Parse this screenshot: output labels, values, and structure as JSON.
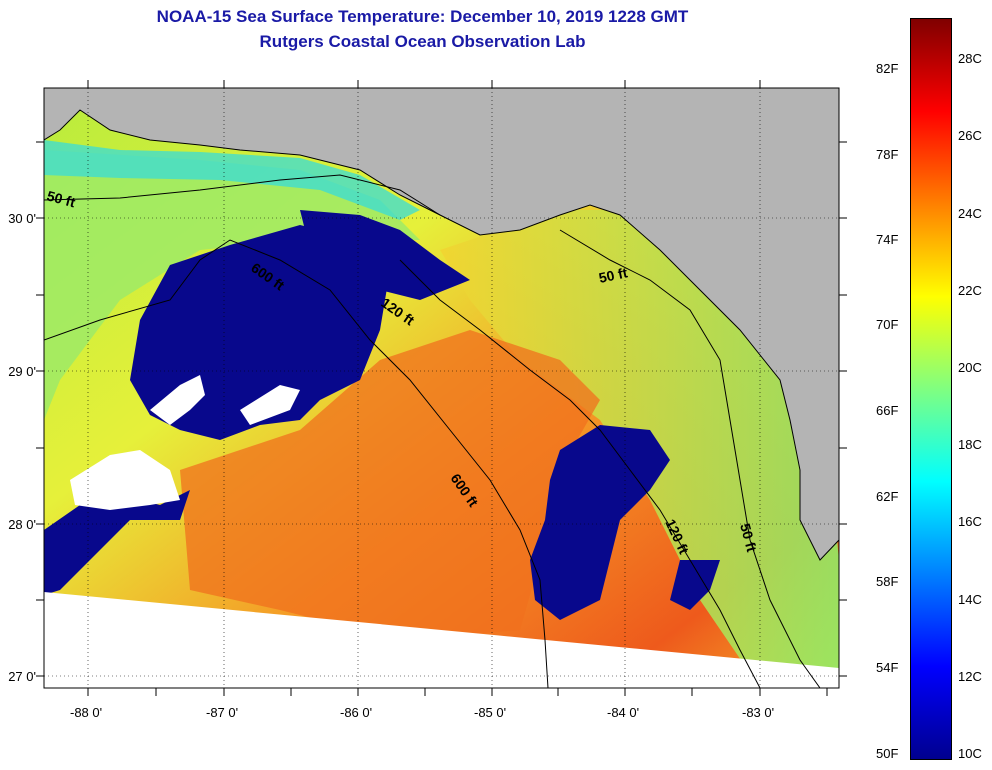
{
  "header": {
    "title": "NOAA-15 Sea Surface Temperature:  December 10, 2019 1228 GMT",
    "subtitle": "Rutgers Coastal Ocean Observation Lab"
  },
  "map": {
    "lat_labels": [
      "30 0'",
      "29 0'",
      "28 0'",
      "27 0'"
    ],
    "lon_labels": [
      "-88 0'",
      "-87 0'",
      "-86 0'",
      "-85 0'",
      "-84 0'",
      "-83 0'"
    ],
    "isobath_labels": [
      "50 ft",
      "600 ft",
      "120 ft",
      "50 ft",
      "600 ft",
      "120 ft",
      "50 ft"
    ],
    "colors": {
      "land": "#b4b4b4",
      "cloud": "#08088c",
      "no_data": "#ffffff",
      "warm_water": "#f59a26",
      "cool_water": "#b8ec3c"
    }
  },
  "colorbar": {
    "fahrenheit_labels": [
      "82F",
      "78F",
      "74F",
      "70F",
      "66F",
      "62F",
      "58F",
      "54F",
      "50F"
    ],
    "celsius_labels": [
      "28C",
      "26C",
      "24C",
      "22C",
      "20C",
      "18C",
      "16C",
      "14C",
      "12C",
      "10C"
    ],
    "gradient": [
      "#00008f",
      "#0000ff",
      "#0080ff",
      "#00ffff",
      "#80ff80",
      "#ffff00",
      "#ff8000",
      "#ff0000",
      "#800000"
    ]
  }
}
